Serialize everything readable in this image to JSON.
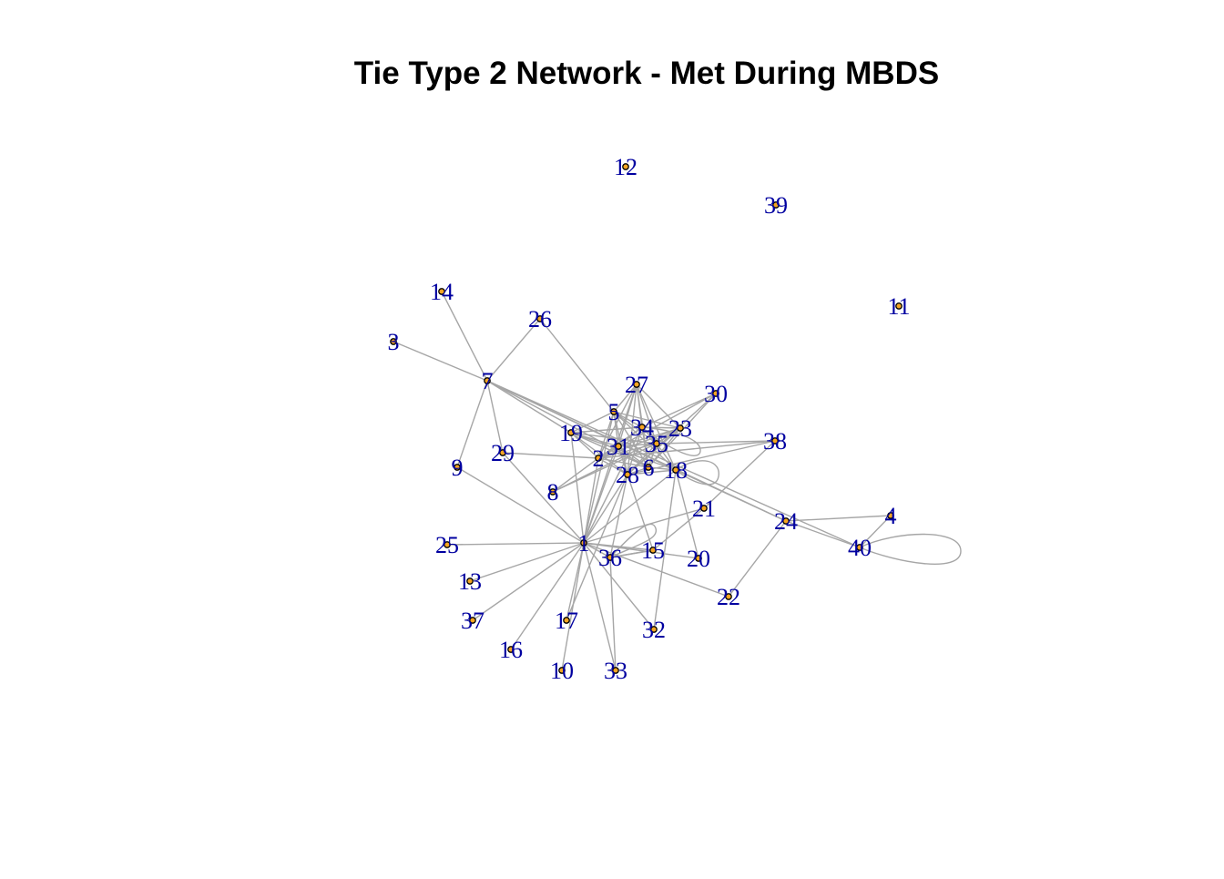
{
  "title": "Tie Type 2 Network - Met During MBDS",
  "style": {
    "edge_color": "#a6a6a6",
    "node_fill": "#f5a623",
    "node_stroke": "#000000",
    "label_color": "#0000a0"
  },
  "graph": {
    "nodes": [
      "1",
      "2",
      "3",
      "4",
      "5",
      "6",
      "7",
      "8",
      "9",
      "10",
      "11",
      "12",
      "13",
      "14",
      "15",
      "16",
      "17",
      "18",
      "19",
      "20",
      "21",
      "22",
      "23",
      "24",
      "25",
      "26",
      "27",
      "28",
      "29",
      "30",
      "31",
      "32",
      "33",
      "34",
      "35",
      "36",
      "37",
      "38",
      "39",
      "40"
    ],
    "edges": [
      [
        "14",
        "7"
      ],
      [
        "26",
        "7"
      ],
      [
        "3",
        "7"
      ],
      [
        "7",
        "29"
      ],
      [
        "7",
        "9"
      ],
      [
        "7",
        "19"
      ],
      [
        "7",
        "18"
      ],
      [
        "7",
        "6"
      ],
      [
        "7",
        "24"
      ],
      [
        "7",
        "40"
      ],
      [
        "26",
        "5"
      ],
      [
        "9",
        "1"
      ],
      [
        "29",
        "1"
      ],
      [
        "29",
        "2"
      ],
      [
        "1",
        "25"
      ],
      [
        "1",
        "13"
      ],
      [
        "1",
        "37"
      ],
      [
        "1",
        "16"
      ],
      [
        "1",
        "10"
      ],
      [
        "1",
        "33"
      ],
      [
        "1",
        "17"
      ],
      [
        "1",
        "36"
      ],
      [
        "1",
        "15"
      ],
      [
        "1",
        "20"
      ],
      [
        "1",
        "21"
      ],
      [
        "1",
        "22"
      ],
      [
        "1",
        "32"
      ],
      [
        "1",
        "2"
      ],
      [
        "1",
        "31"
      ],
      [
        "1",
        "34"
      ],
      [
        "1",
        "5"
      ],
      [
        "1",
        "28"
      ],
      [
        "1",
        "27"
      ],
      [
        "1",
        "19"
      ],
      [
        "1",
        "18"
      ],
      [
        "8",
        "2"
      ],
      [
        "8",
        "23"
      ],
      [
        "8",
        "35"
      ],
      [
        "19",
        "5"
      ],
      [
        "19",
        "31"
      ],
      [
        "19",
        "34"
      ],
      [
        "19",
        "35"
      ],
      [
        "19",
        "6"
      ],
      [
        "19",
        "2"
      ],
      [
        "19",
        "28"
      ],
      [
        "19",
        "18"
      ],
      [
        "5",
        "27"
      ],
      [
        "5",
        "34"
      ],
      [
        "5",
        "31"
      ],
      [
        "5",
        "35"
      ],
      [
        "5",
        "28"
      ],
      [
        "5",
        "6"
      ],
      [
        "5",
        "23"
      ],
      [
        "5",
        "2"
      ],
      [
        "5",
        "18"
      ],
      [
        "27",
        "34"
      ],
      [
        "27",
        "31"
      ],
      [
        "27",
        "2"
      ],
      [
        "27",
        "28"
      ],
      [
        "27",
        "35"
      ],
      [
        "27",
        "6"
      ],
      [
        "27",
        "23"
      ],
      [
        "27",
        "18"
      ],
      [
        "30",
        "34"
      ],
      [
        "30",
        "28"
      ],
      [
        "30",
        "2"
      ],
      [
        "30",
        "6"
      ],
      [
        "34",
        "31"
      ],
      [
        "34",
        "35"
      ],
      [
        "34",
        "23"
      ],
      [
        "34",
        "28"
      ],
      [
        "34",
        "6"
      ],
      [
        "34",
        "2"
      ],
      [
        "31",
        "2"
      ],
      [
        "31",
        "35"
      ],
      [
        "31",
        "28"
      ],
      [
        "31",
        "6"
      ],
      [
        "31",
        "23"
      ],
      [
        "23",
        "35"
      ],
      [
        "23",
        "6"
      ],
      [
        "23",
        "2"
      ],
      [
        "23",
        "28"
      ],
      [
        "35",
        "6"
      ],
      [
        "35",
        "28"
      ],
      [
        "35",
        "2"
      ],
      [
        "35",
        "38"
      ],
      [
        "35",
        "18"
      ],
      [
        "2",
        "28"
      ],
      [
        "2",
        "6"
      ],
      [
        "6",
        "28"
      ],
      [
        "28",
        "18"
      ],
      [
        "6",
        "18"
      ],
      [
        "38",
        "28"
      ],
      [
        "38",
        "21"
      ],
      [
        "38",
        "2"
      ],
      [
        "18",
        "20"
      ],
      [
        "18",
        "24"
      ],
      [
        "18",
        "32"
      ],
      [
        "21",
        "15"
      ],
      [
        "24",
        "22"
      ],
      [
        "24",
        "4"
      ],
      [
        "24",
        "40"
      ],
      [
        "4",
        "40"
      ],
      [
        "36",
        "28"
      ],
      [
        "36",
        "15"
      ],
      [
        "17",
        "28"
      ],
      [
        "15",
        "28"
      ],
      [
        "15",
        "36"
      ],
      [
        "33",
        "36"
      ]
    ],
    "loops": [
      "40",
      "18",
      "34",
      "36"
    ]
  }
}
